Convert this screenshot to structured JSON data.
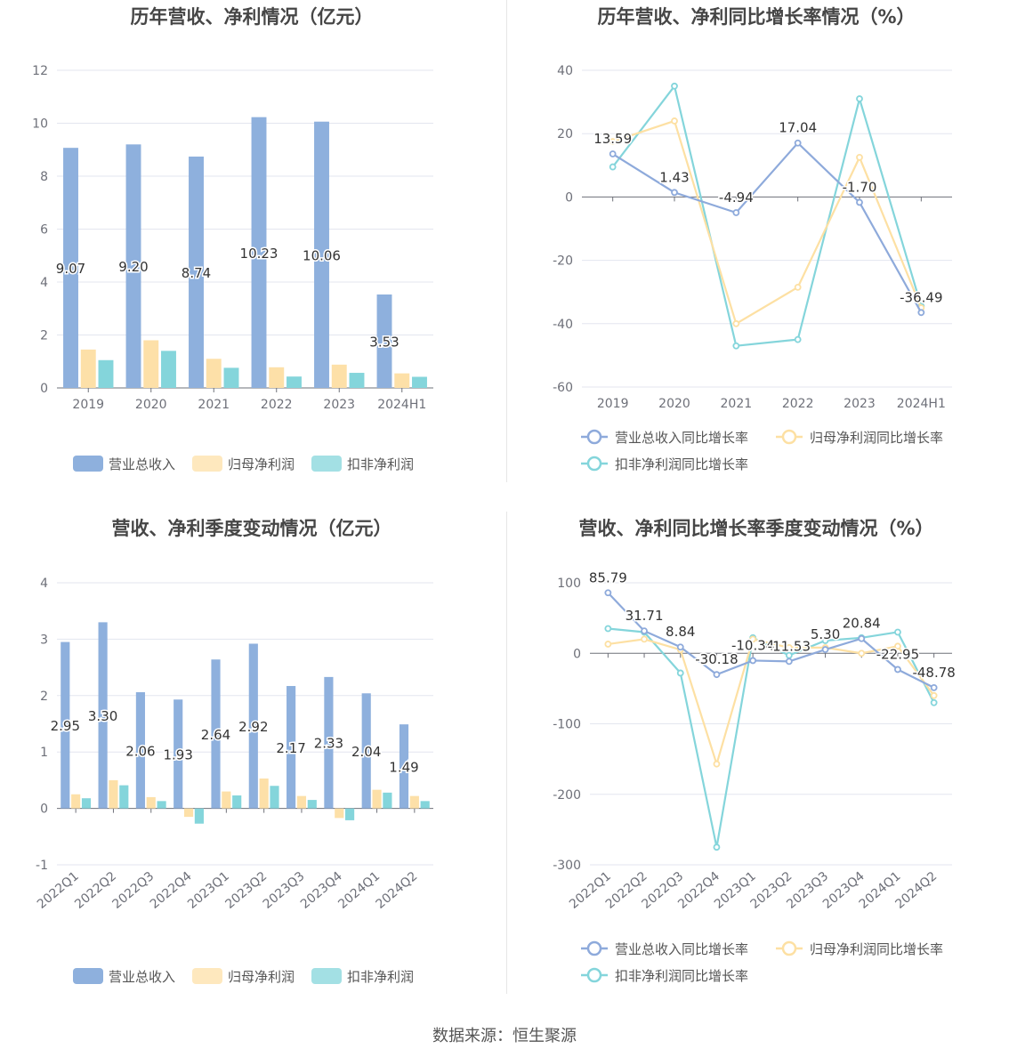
{
  "source": "数据来源：恒生聚源",
  "colors": {
    "revenue": "#8eb0dd",
    "netprofit": "#fde0a8",
    "deducted": "#84d5db",
    "grid": "#e3e6ef",
    "axis": "#6e7079",
    "label": "#333333"
  },
  "chart_data": [
    {
      "id": "annual-amount",
      "type": "bar",
      "title": "历年营收、净利情况（亿元）",
      "categories": [
        "2019",
        "2020",
        "2021",
        "2022",
        "2023",
        "2024H1"
      ],
      "ylim": [
        0,
        12
      ],
      "yticks": [
        0,
        2,
        4,
        6,
        8,
        10,
        12
      ],
      "series": [
        {
          "name": "营业总收入",
          "values": [
            9.07,
            9.2,
            8.74,
            10.23,
            10.06,
            3.53
          ],
          "labels": [
            "9.07",
            "9.20",
            "8.74",
            "10.23",
            "10.06",
            "3.53"
          ]
        },
        {
          "name": "归母净利润",
          "values": [
            1.45,
            1.8,
            1.1,
            0.78,
            0.88,
            0.55
          ]
        },
        {
          "name": "扣非净利润",
          "values": [
            1.05,
            1.4,
            0.76,
            0.43,
            0.57,
            0.42
          ]
        }
      ],
      "legend": [
        "营业总收入",
        "归母净利润",
        "扣非净利润"
      ]
    },
    {
      "id": "annual-growth",
      "type": "line",
      "title": "历年营收、净利同比增长率情况（%）",
      "categories": [
        "2019",
        "2020",
        "2021",
        "2022",
        "2023",
        "2024H1"
      ],
      "ylim": [
        -60,
        40
      ],
      "yticks": [
        -60,
        -40,
        -20,
        0,
        20,
        40
      ],
      "series": [
        {
          "name": "营业总收入同比增长率",
          "values": [
            13.59,
            1.43,
            -4.94,
            17.04,
            -1.7,
            -36.49
          ],
          "labels": [
            "13.59",
            "1.43",
            "-4.94",
            "17.04",
            "-1.70",
            "-36.49"
          ]
        },
        {
          "name": "归母净利润同比增长率",
          "values": [
            17.5,
            24.0,
            -40.0,
            -28.5,
            12.5,
            -35.0
          ]
        },
        {
          "name": "扣非净利润同比增长率",
          "values": [
            9.5,
            35.0,
            -47.0,
            -45.0,
            31.0,
            -34.5
          ]
        }
      ],
      "legend": [
        "营业总收入同比增长率",
        "归母净利润同比增长率",
        "扣非净利润同比增长率"
      ]
    },
    {
      "id": "quarterly-amount",
      "type": "bar",
      "title": "营收、净利季度变动情况（亿元）",
      "categories": [
        "2022Q1",
        "2022Q2",
        "2022Q3",
        "2022Q4",
        "2023Q1",
        "2023Q2",
        "2023Q3",
        "2023Q4",
        "2024Q1",
        "2024Q2"
      ],
      "ylim": [
        -1,
        4
      ],
      "yticks": [
        -1,
        0,
        1,
        2,
        3,
        4
      ],
      "series": [
        {
          "name": "营业总收入",
          "values": [
            2.95,
            3.3,
            2.06,
            1.93,
            2.64,
            2.92,
            2.17,
            2.33,
            2.04,
            1.49
          ],
          "labels": [
            "2.95",
            "3.30",
            "2.06",
            "1.93",
            "2.64",
            "2.92",
            "2.17",
            "2.33",
            "2.04",
            "1.49"
          ]
        },
        {
          "name": "归母净利润",
          "values": [
            0.25,
            0.5,
            0.2,
            -0.15,
            0.3,
            0.53,
            0.22,
            -0.17,
            0.33,
            0.22
          ]
        },
        {
          "name": "扣非净利润",
          "values": [
            0.18,
            0.41,
            0.13,
            -0.27,
            0.23,
            0.4,
            0.15,
            -0.21,
            0.28,
            0.13
          ]
        }
      ],
      "legend": [
        "营业总收入",
        "归母净利润",
        "扣非净利润"
      ]
    },
    {
      "id": "quarterly-growth",
      "type": "line",
      "title": "营收、净利同比增长率季度变动情况（%）",
      "categories": [
        "2022Q1",
        "2022Q2",
        "2022Q3",
        "2022Q4",
        "2023Q1",
        "2023Q2",
        "2023Q3",
        "2023Q4",
        "2024Q1",
        "2024Q2"
      ],
      "ylim": [
        -300,
        100
      ],
      "yticks": [
        -300,
        -200,
        -100,
        0,
        100
      ],
      "series": [
        {
          "name": "营业总收入同比增长率",
          "values": [
            85.79,
            31.71,
            8.84,
            -30.18,
            -10.34,
            -11.53,
            5.3,
            20.84,
            -22.95,
            -48.78
          ],
          "labels": [
            "85.79",
            "31.71",
            "8.84",
            "-30.18",
            "-10.34",
            "-11.53",
            "5.30",
            "20.84",
            "-22.95",
            "-48.78"
          ]
        },
        {
          "name": "归母净利润同比增长率",
          "values": [
            13,
            20,
            5,
            -157,
            20,
            8,
            8,
            0,
            10,
            -60
          ]
        },
        {
          "name": "扣非净利润同比增长率",
          "values": [
            35,
            30,
            -28,
            -275,
            22,
            -3,
            18,
            22,
            30,
            -70
          ]
        }
      ],
      "legend": [
        "营业总收入同比增长率",
        "归母净利润同比增长率",
        "扣非净利润同比增长率"
      ]
    }
  ]
}
